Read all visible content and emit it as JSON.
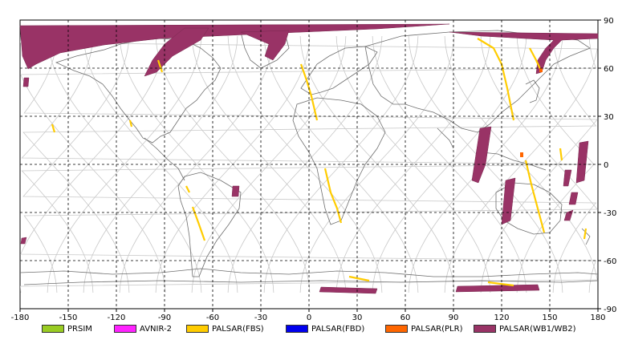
{
  "map": {
    "x_ticks": [
      "-180",
      "-150",
      "-120",
      "-90",
      "-60",
      "-30",
      "0",
      "30",
      "60",
      "90",
      "120",
      "150",
      "180"
    ],
    "y_ticks": [
      "90",
      "60",
      "30",
      "0",
      "-30",
      "-60",
      "-90"
    ],
    "lon_range": [
      -180,
      180
    ],
    "lat_range": [
      -90,
      90
    ],
    "grid": true
  },
  "legend": [
    {
      "label": "PRSIM",
      "color": "#99cc22"
    },
    {
      "label": "AVNIR-2",
      "color": "#ff22ff"
    },
    {
      "label": "PALSAR(FBS)",
      "color": "#ffcc00"
    },
    {
      "label": "PALSAR(FBD)",
      "color": "#0000ee"
    },
    {
      "label": "PALSAR(PLR)",
      "color": "#ff6600"
    },
    {
      "label": "PALSAR(WB1/WB2)",
      "color": "#993366"
    }
  ]
}
